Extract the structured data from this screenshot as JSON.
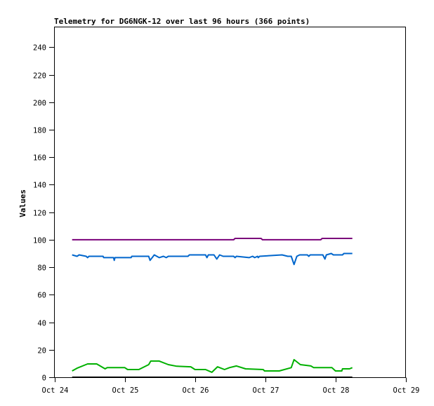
{
  "chart_data": {
    "type": "line",
    "title": "Telemetry for DG6NGK-12 over last 96 hours (366 points)",
    "xlabel": "",
    "ylabel": "Values",
    "x_units": "days since Oct 24 00:00",
    "xlim": [
      0,
      5
    ],
    "ylim": [
      0,
      255
    ],
    "x_ticks": [
      {
        "value": 0,
        "label": "Oct 24"
      },
      {
        "value": 1,
        "label": "Oct 25"
      },
      {
        "value": 2,
        "label": "Oct 26"
      },
      {
        "value": 3,
        "label": "Oct 27"
      },
      {
        "value": 4,
        "label": "Oct 28"
      },
      {
        "value": 5,
        "label": "Oct 29"
      }
    ],
    "y_ticks": [
      0,
      20,
      40,
      60,
      80,
      100,
      120,
      140,
      160,
      180,
      200,
      220,
      240
    ],
    "grid": false,
    "legend": "none",
    "series": [
      {
        "name": "series-1",
        "color": "#7a007a",
        "points": [
          [
            0.25,
            100
          ],
          [
            2.55,
            100
          ],
          [
            2.57,
            101
          ],
          [
            2.94,
            101
          ],
          [
            2.96,
            100
          ],
          [
            3.79,
            100
          ],
          [
            3.81,
            101
          ],
          [
            4.24,
            101
          ]
        ]
      },
      {
        "name": "series-2",
        "color": "#0066cc",
        "points": [
          [
            0.25,
            89
          ],
          [
            0.32,
            88
          ],
          [
            0.35,
            89
          ],
          [
            0.45,
            88
          ],
          [
            0.47,
            87
          ],
          [
            0.49,
            88
          ],
          [
            0.69,
            88
          ],
          [
            0.7,
            87
          ],
          [
            0.84,
            87
          ],
          [
            0.85,
            85
          ],
          [
            0.86,
            87
          ],
          [
            1.09,
            87
          ],
          [
            1.1,
            88
          ],
          [
            1.34,
            88
          ],
          [
            1.36,
            85
          ],
          [
            1.42,
            89
          ],
          [
            1.49,
            87
          ],
          [
            1.55,
            88
          ],
          [
            1.59,
            87
          ],
          [
            1.62,
            88
          ],
          [
            1.9,
            88
          ],
          [
            1.92,
            89
          ],
          [
            2.15,
            89
          ],
          [
            2.17,
            87
          ],
          [
            2.19,
            89
          ],
          [
            2.27,
            89
          ],
          [
            2.31,
            86
          ],
          [
            2.35,
            89
          ],
          [
            2.4,
            88
          ],
          [
            2.55,
            88
          ],
          [
            2.57,
            87
          ],
          [
            2.59,
            88
          ],
          [
            2.77,
            87
          ],
          [
            2.82,
            88
          ],
          [
            2.85,
            87
          ],
          [
            2.89,
            88
          ],
          [
            2.9,
            87
          ],
          [
            2.92,
            88
          ],
          [
            3.24,
            89
          ],
          [
            3.32,
            88
          ],
          [
            3.37,
            88
          ],
          [
            3.41,
            82
          ],
          [
            3.45,
            88
          ],
          [
            3.49,
            89
          ],
          [
            3.6,
            89
          ],
          [
            3.62,
            88
          ],
          [
            3.64,
            89
          ],
          [
            3.82,
            89
          ],
          [
            3.85,
            86
          ],
          [
            3.87,
            89
          ],
          [
            3.94,
            90
          ],
          [
            3.97,
            89
          ],
          [
            4.1,
            89
          ],
          [
            4.12,
            90
          ],
          [
            4.24,
            90
          ]
        ]
      },
      {
        "name": "series-3",
        "color": "#00b000",
        "points": [
          [
            0.25,
            4.6
          ],
          [
            0.32,
            6.6
          ],
          [
            0.47,
            9.7
          ],
          [
            0.6,
            9.7
          ],
          [
            0.72,
            6.1
          ],
          [
            0.75,
            7
          ],
          [
            1.0,
            7
          ],
          [
            1.04,
            5.6
          ],
          [
            1.2,
            5.6
          ],
          [
            1.34,
            9.2
          ],
          [
            1.37,
            11.8
          ],
          [
            1.49,
            11.8
          ],
          [
            1.62,
            9.2
          ],
          [
            1.74,
            8
          ],
          [
            1.94,
            7.6
          ],
          [
            2.0,
            5.6
          ],
          [
            2.15,
            5.6
          ],
          [
            2.24,
            3.6
          ],
          [
            2.32,
            7.6
          ],
          [
            2.42,
            5.6
          ],
          [
            2.49,
            7
          ],
          [
            2.59,
            8.2
          ],
          [
            2.72,
            6.1
          ],
          [
            2.97,
            5.6
          ],
          [
            2.99,
            4.6
          ],
          [
            3.2,
            4.6
          ],
          [
            3.37,
            7
          ],
          [
            3.41,
            12.8
          ],
          [
            3.5,
            9.2
          ],
          [
            3.65,
            8.2
          ],
          [
            3.69,
            7
          ],
          [
            3.95,
            7
          ],
          [
            4.0,
            4.6
          ],
          [
            4.09,
            4.6
          ],
          [
            4.1,
            6.1
          ],
          [
            4.2,
            6.1
          ],
          [
            4.24,
            7
          ]
        ]
      },
      {
        "name": "series-4",
        "color": "#000000",
        "points": [
          [
            0.25,
            0
          ],
          [
            4.24,
            0
          ]
        ]
      }
    ]
  }
}
